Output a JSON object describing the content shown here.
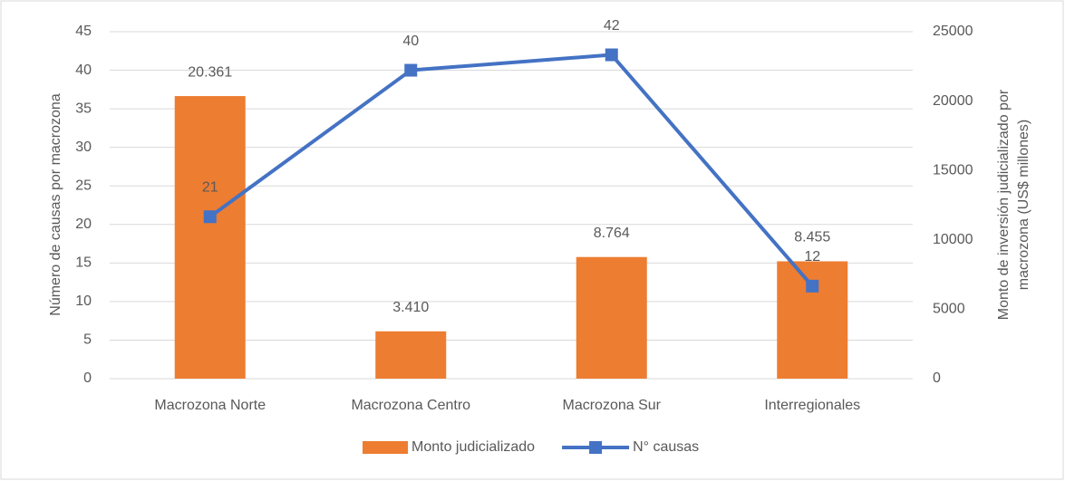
{
  "chart_data": {
    "type": "combo",
    "categories": [
      "Macrozona Norte",
      "Macrozona Centro",
      "Macrozona Sur",
      "Interregionales"
    ],
    "series": [
      {
        "name": "Monto judicializado",
        "type": "bar",
        "color": "#ed7d31",
        "axis": "y2",
        "values": [
          20361,
          3410,
          8764,
          8455
        ],
        "value_labels": [
          "20.361",
          "3.410",
          "8.764",
          "8.455"
        ]
      },
      {
        "name": "N° causas",
        "type": "line",
        "color": "#4472c4",
        "axis": "y",
        "values": [
          21,
          40,
          42,
          12
        ]
      }
    ],
    "y_label": "Número de causas por macrozona",
    "y2_label": [
      "Monto de inversión judicializado por",
      "macrozona (US$ millones)"
    ],
    "ylim": [
      0,
      45
    ],
    "yticks": [
      0,
      5,
      10,
      15,
      20,
      25,
      30,
      35,
      40,
      45
    ],
    "y2lim": [
      0,
      25000
    ],
    "y2ticks": [
      0,
      5000,
      10000,
      15000,
      20000,
      25000
    ],
    "grid": true,
    "legend": "bottom"
  }
}
